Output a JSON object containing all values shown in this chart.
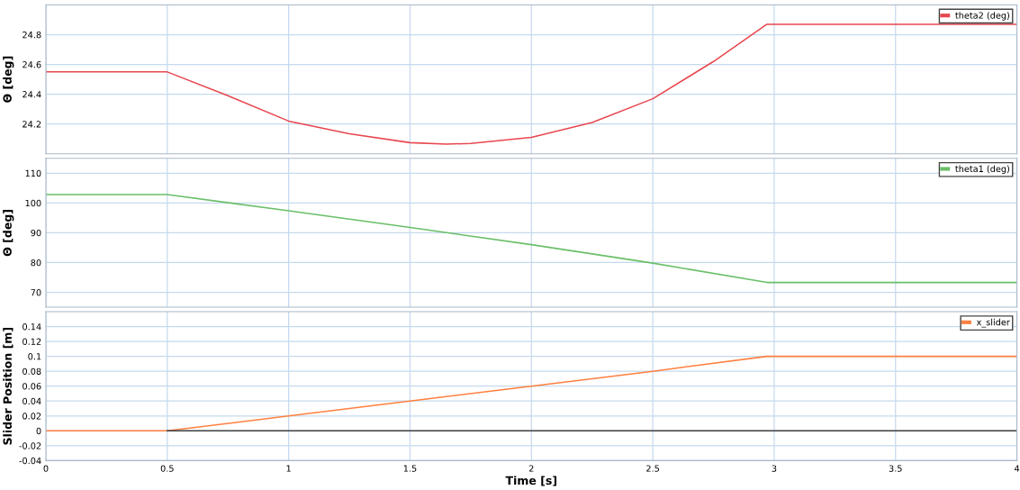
{
  "chart_data": [
    {
      "type": "line",
      "ylabel": "Θ [deg]",
      "x": [
        0,
        0.5,
        0.75,
        1,
        1.25,
        1.5,
        1.65,
        1.75,
        2,
        2.25,
        2.5,
        2.75,
        2.97,
        4
      ],
      "series": [
        {
          "name": "theta2 (deg)",
          "color": "#e8474f",
          "values": [
            24.55,
            24.55,
            24.39,
            24.22,
            24.135,
            24.075,
            24.065,
            24.07,
            24.11,
            24.21,
            24.37,
            24.62,
            24.87,
            24.87
          ]
        }
      ],
      "xlim": [
        0,
        4
      ],
      "xticks": [
        0,
        0.5,
        1,
        1.5,
        2,
        2.5,
        3,
        3.5,
        4
      ],
      "ylim": [
        24.0,
        25.0
      ],
      "yticks": [
        24.2,
        24.4,
        24.6,
        24.8
      ],
      "grid": true,
      "legend": "top right",
      "tick_labels": "y"
    },
    {
      "type": "line",
      "ylabel": "Θ [deg]",
      "x": [
        0,
        0.5,
        1,
        1.5,
        2,
        2.5,
        2.97,
        4
      ],
      "series": [
        {
          "name": "theta1 (deg)",
          "color": "#6abf69",
          "values": [
            102.8,
            102.8,
            97.4,
            91.8,
            86,
            79.8,
            73.3,
            73.3
          ]
        }
      ],
      "xlim": [
        0,
        4
      ],
      "xticks": [
        0,
        0.5,
        1,
        1.5,
        2,
        2.5,
        3,
        3.5,
        4
      ],
      "ylim": [
        65,
        115
      ],
      "yticks": [
        70,
        80,
        90,
        100,
        110
      ],
      "grid": true,
      "legend": "top right",
      "tick_labels": "y"
    },
    {
      "type": "line",
      "ylabel": "Slider Position [m]",
      "xlabel": "Time [s]",
      "x": [
        0,
        0.5,
        1,
        1.5,
        2,
        2.5,
        2.97,
        4
      ],
      "series": [
        {
          "name": "x_slider",
          "color": "#ff8040",
          "values": [
            0,
            0,
            0.02,
            0.04,
            0.06,
            0.08,
            0.1,
            0.1
          ]
        },
        {
          "color": "#404040",
          "x": [
            0.5,
            4
          ],
          "values": [
            0,
            0
          ]
        }
      ],
      "xlim": [
        0,
        4
      ],
      "xticks": [
        0,
        0.5,
        1,
        1.5,
        2,
        2.5,
        3,
        3.5,
        4
      ],
      "ylim": [
        -0.04,
        0.16
      ],
      "yticks": [
        -0.04,
        -0.02,
        0,
        0.02,
        0.04,
        0.06,
        0.08,
        0.1,
        0.12,
        0.14
      ],
      "grid": true,
      "legend": "top right"
    }
  ]
}
